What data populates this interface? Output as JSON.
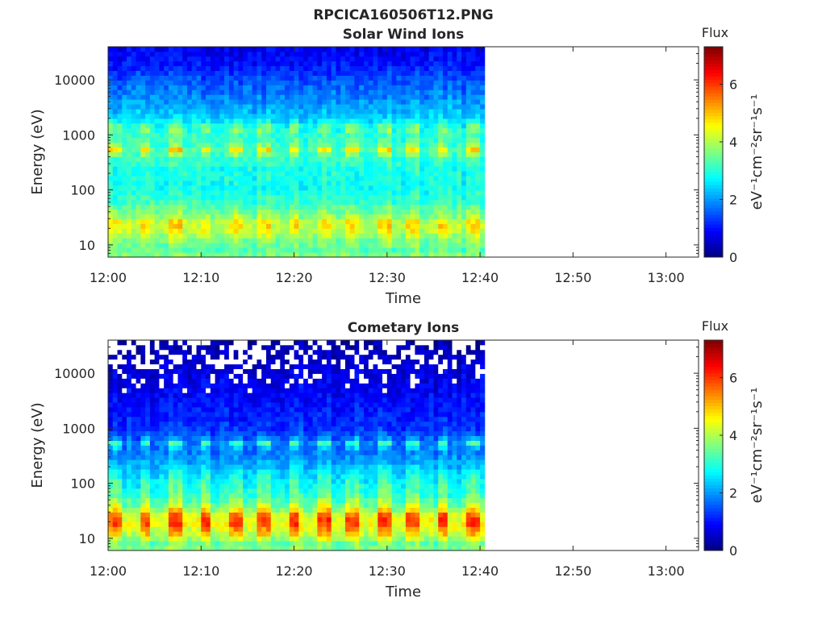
{
  "figure_title": "RPCICA160506T12.PNG",
  "colors": {
    "axis": "#262626",
    "background": "#ffffff",
    "colormap": "jet"
  },
  "chart_data": [
    {
      "type": "heatmap",
      "title": "Solar Wind Ions",
      "xlabel": "Time",
      "ylabel": "Energy (eV)",
      "x_ticks": [
        "12:00",
        "12:10",
        "12:20",
        "12:30",
        "12:40",
        "12:50",
        "13:00"
      ],
      "x_range_minutes": [
        0,
        63.5
      ],
      "data_end_minutes": 40.5,
      "y_scale": "log",
      "y_range_eV": [
        6,
        40000
      ],
      "y_ticks": [
        {
          "value": 10,
          "label": "10"
        },
        {
          "value": 100,
          "label": "100"
        },
        {
          "value": 1000,
          "label": "1000"
        },
        {
          "value": 10000,
          "label": "10000"
        }
      ],
      "colorbar": {
        "title": "Flux",
        "label": "eV⁻¹cm⁻²sr⁻¹s⁻¹",
        "range": [
          0,
          7.3
        ],
        "ticks": [
          "0",
          "2",
          "4",
          "6"
        ]
      },
      "profile": {
        "energy_eV": [
          6,
          8,
          12,
          18,
          25,
          35,
          60,
          120,
          250,
          400,
          550,
          700,
          1000,
          1300,
          2000,
          4000,
          10000,
          20000,
          40000
        ],
        "off_beam": [
          3.8,
          3.3,
          3.5,
          4.0,
          4.1,
          3.6,
          3.1,
          2.8,
          2.9,
          3.1,
          3.2,
          3.0,
          3.0,
          2.9,
          2.4,
          2.0,
          1.5,
          1.0,
          0.8
        ],
        "on_beam": [
          3.8,
          3.5,
          3.9,
          4.6,
          4.9,
          4.0,
          3.2,
          2.9,
          3.0,
          3.4,
          4.8,
          3.5,
          3.3,
          3.9,
          2.5,
          2.0,
          1.5,
          1.0,
          0.8
        ]
      },
      "beam_period_minutes": 3.2
    },
    {
      "type": "heatmap",
      "title": "Cometary Ions",
      "xlabel": "Time",
      "ylabel": "Energy (eV)",
      "x_ticks": [
        "12:00",
        "12:10",
        "12:20",
        "12:30",
        "12:40",
        "12:50",
        "13:00"
      ],
      "x_range_minutes": [
        0,
        63.5
      ],
      "data_end_minutes": 40.5,
      "y_scale": "log",
      "y_range_eV": [
        6,
        40000
      ],
      "y_ticks": [
        {
          "value": 10,
          "label": "10"
        },
        {
          "value": 100,
          "label": "100"
        },
        {
          "value": 1000,
          "label": "1000"
        },
        {
          "value": 10000,
          "label": "10000"
        }
      ],
      "colorbar": {
        "title": "Flux",
        "label": "eV⁻¹cm⁻²sr⁻¹s⁻¹",
        "range": [
          0,
          7.3
        ],
        "ticks": [
          "0",
          "2",
          "4",
          "6"
        ]
      },
      "profile": {
        "energy_eV": [
          6,
          8,
          12,
          18,
          25,
          35,
          60,
          120,
          250,
          400,
          550,
          700,
          1000,
          1300,
          2000,
          4000,
          10000,
          20000,
          40000
        ],
        "off_beam": [
          3.7,
          3.4,
          4.1,
          4.5,
          4.4,
          3.6,
          3.0,
          2.6,
          2.1,
          1.7,
          1.8,
          1.5,
          1.3,
          1.2,
          1.1,
          0.9,
          0.7,
          0.5,
          0.3
        ],
        "on_beam": [
          3.8,
          3.7,
          5.0,
          5.9,
          6.0,
          4.6,
          3.6,
          3.2,
          2.2,
          1.9,
          3.3,
          1.7,
          1.3,
          1.2,
          1.1,
          0.9,
          0.7,
          0.5,
          0.3
        ]
      },
      "beam_period_minutes": 3.2
    }
  ]
}
